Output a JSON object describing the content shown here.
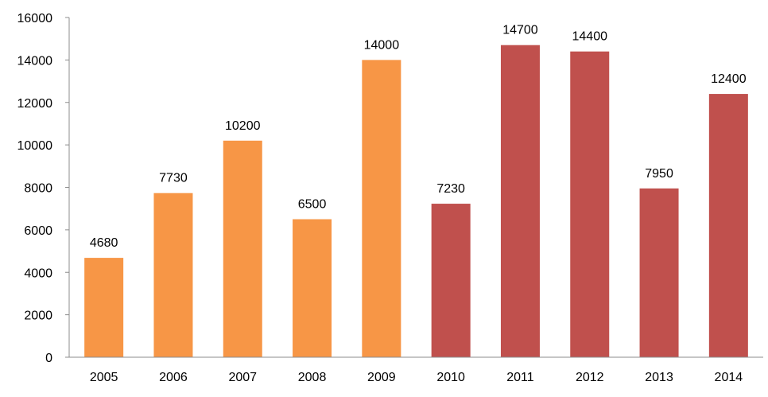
{
  "chart_data": {
    "type": "bar",
    "title": "",
    "xlabel": "",
    "ylabel": "",
    "categories": [
      "2005",
      "2006",
      "2007",
      "2008",
      "2009",
      "2010",
      "2011",
      "2012",
      "2013",
      "2014"
    ],
    "values": [
      4680,
      7730,
      10200,
      6500,
      14000,
      7230,
      14700,
      14400,
      7950,
      12400
    ],
    "data_labels": [
      "4680",
      "7730",
      "10200",
      "6500",
      "14000",
      "7230",
      "14700",
      "14400",
      "7950",
      "12400"
    ],
    "bar_colors": [
      "#F79646",
      "#F79646",
      "#F79646",
      "#F79646",
      "#F79646",
      "#C0504D",
      "#C0504D",
      "#C0504D",
      "#C0504D",
      "#C0504D"
    ],
    "ylim": [
      0,
      16000
    ],
    "yticks": [
      0,
      2000,
      4000,
      6000,
      8000,
      10000,
      12000,
      14000,
      16000
    ],
    "ytick_labels": [
      "0",
      "2000",
      "4000",
      "6000",
      "8000",
      "10000",
      "12000",
      "14000",
      "16000"
    ],
    "grid": false,
    "legend": "none"
  }
}
